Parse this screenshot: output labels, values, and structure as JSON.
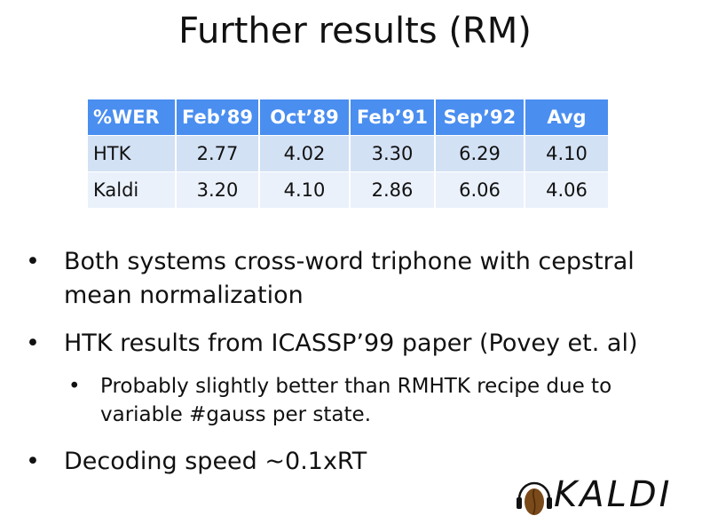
{
  "title": "Further results (RM)",
  "table": {
    "headers": [
      "%WER",
      "Feb’89",
      "Oct’89",
      "Feb’91",
      "Sep’92",
      "Avg"
    ],
    "rows": [
      [
        "HTK",
        "2.77",
        "4.02",
        "3.30",
        "6.29",
        "4.10"
      ],
      [
        "Kaldi",
        "3.20",
        "4.10",
        "2.86",
        "6.06",
        "4.06"
      ]
    ],
    "header_color": "#4a8ef0"
  },
  "bullets": [
    {
      "text": "Both systems cross-word triphone with cepstral mean normalization"
    },
    {
      "text": "HTK results from ICASSP’99 paper (Povey et. al)"
    },
    {
      "text": "Probably slightly better than RMHTK recipe due to variable #gauss per state."
    },
    {
      "text": "Decoding speed ~0.1xRT"
    }
  ],
  "bullet_glyph": "•",
  "logo": {
    "text": "KALDI"
  }
}
